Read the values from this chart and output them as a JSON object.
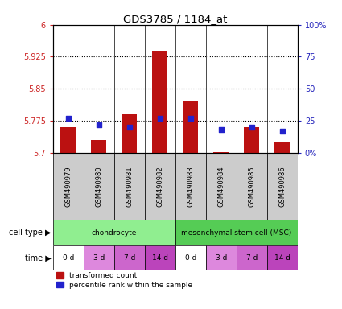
{
  "title": "GDS3785 / 1184_at",
  "samples": [
    "GSM490979",
    "GSM490980",
    "GSM490981",
    "GSM490982",
    "GSM490983",
    "GSM490984",
    "GSM490985",
    "GSM490986"
  ],
  "red_values": [
    5.76,
    5.73,
    5.79,
    5.94,
    5.82,
    5.702,
    5.76,
    5.724
  ],
  "blue_values_pct": [
    27,
    22,
    20,
    27,
    27,
    18,
    20,
    17
  ],
  "ylim_left": [
    5.7,
    6.0
  ],
  "ylim_right": [
    0,
    100
  ],
  "yticks_left": [
    5.7,
    5.775,
    5.85,
    5.925,
    6.0
  ],
  "yticks_right": [
    0,
    25,
    50,
    75,
    100
  ],
  "ytick_labels_left": [
    "5.7",
    "5.775",
    "5.85",
    "5.925",
    "6"
  ],
  "ytick_labels_right": [
    "0%",
    "25",
    "50",
    "75",
    "100%"
  ],
  "dotted_lines": [
    5.775,
    5.85,
    5.925
  ],
  "cell_types": [
    {
      "label": "chondrocyte",
      "start": 0,
      "end": 4,
      "color": "#90ee90"
    },
    {
      "label": "mesenchymal stem cell (MSC)",
      "start": 4,
      "end": 8,
      "color": "#55cc55"
    }
  ],
  "time_labels": [
    "0 d",
    "3 d",
    "7 d",
    "14 d",
    "0 d",
    "3 d",
    "7 d",
    "14 d"
  ],
  "time_colors": [
    "#ffffff",
    "#dd88dd",
    "#cc66cc",
    "#bb44bb",
    "#ffffff",
    "#dd88dd",
    "#cc66cc",
    "#bb44bb"
  ],
  "bar_color": "#bb1111",
  "dot_color": "#2222cc",
  "bar_width": 0.5,
  "dot_size": 25,
  "legend_items": [
    {
      "label": "transformed count",
      "color": "#bb1111"
    },
    {
      "label": "percentile rank within the sample",
      "color": "#2222cc"
    }
  ],
  "background_color": "#ffffff",
  "plot_bg": "#ffffff",
  "left_color": "#cc2222",
  "right_color": "#2222bb",
  "base_value": 5.7,
  "gsm_bg": "#cccccc",
  "cell_type_label": "cell type",
  "time_label": "time"
}
